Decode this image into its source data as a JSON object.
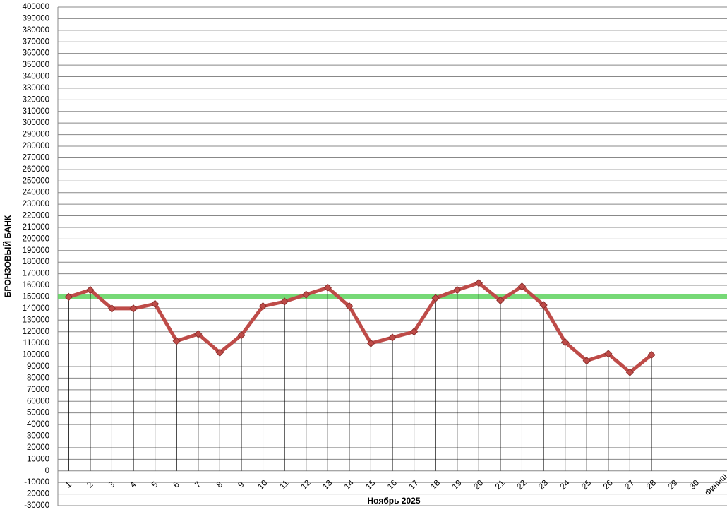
{
  "chart_data": {
    "type": "line",
    "x_label": "Ноябрь 2025",
    "y_label": "БРОНЗОВЫЙ БАНК",
    "categories": [
      "1",
      "2",
      "3",
      "4",
      "5",
      "6",
      "7",
      "8",
      "9",
      "10",
      "11",
      "12",
      "13",
      "14",
      "15",
      "16",
      "17",
      "18",
      "19",
      "20",
      "21",
      "22",
      "23",
      "24",
      "25",
      "26",
      "27",
      "28",
      "29",
      "30",
      "Финиш"
    ],
    "series": [
      {
        "name": "БРОНЗОВЫЙ БАНК",
        "color": "#be4b48",
        "values": [
          150000,
          156000,
          140000,
          140000,
          144000,
          112000,
          118000,
          102000,
          117000,
          142000,
          146000,
          152000,
          158000,
          142000,
          110000,
          115000,
          120000,
          149000,
          156000,
          162000,
          147000,
          159000,
          143000,
          111000,
          95000,
          101000,
          85000,
          100000,
          null,
          null,
          null
        ]
      }
    ],
    "reference_line": {
      "value": 150000,
      "color": "#5fd35f"
    },
    "drop_lines": true,
    "ylim": [
      -30000,
      400000
    ],
    "yticks": [
      -30000,
      -20000,
      -10000,
      0,
      10000,
      20000,
      30000,
      40000,
      50000,
      60000,
      70000,
      80000,
      90000,
      100000,
      110000,
      120000,
      130000,
      140000,
      150000,
      160000,
      170000,
      180000,
      190000,
      200000,
      210000,
      220000,
      230000,
      240000,
      250000,
      260000,
      270000,
      280000,
      290000,
      300000,
      310000,
      320000,
      330000,
      340000,
      350000,
      360000,
      370000,
      380000,
      390000,
      400000
    ],
    "grid": true
  }
}
